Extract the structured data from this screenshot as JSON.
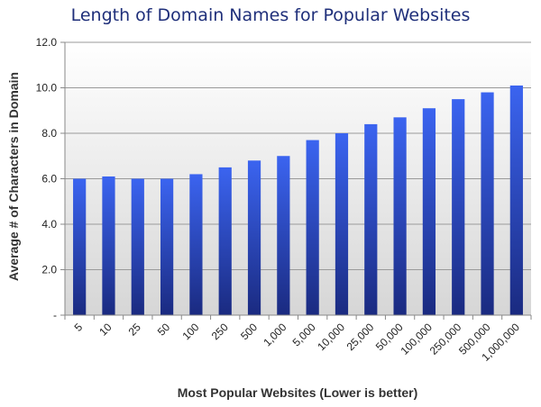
{
  "chart_data": {
    "type": "bar",
    "title": "Length of Domain Names for Popular Websites",
    "xlabel": "Most Popular Websites (Lower is better)",
    "ylabel": "Average # of Characters in Domain",
    "categories": [
      "5",
      "10",
      "25",
      "50",
      "100",
      "250",
      "500",
      "1,000",
      "5,000",
      "10,000",
      "25,000",
      "50,000",
      "100,000",
      "250,000",
      "500,000",
      "1,000,000"
    ],
    "values": [
      6.0,
      6.1,
      6.0,
      6.0,
      6.2,
      6.5,
      6.8,
      7.0,
      7.7,
      8.0,
      8.4,
      8.7,
      9.1,
      9.5,
      9.8,
      10.1
    ],
    "ylim": [
      0,
      12
    ],
    "yticks": [
      "-",
      "2.0",
      "4.0",
      "6.0",
      "8.0",
      "10.0",
      "12.0"
    ],
    "grid": true,
    "legend": "none",
    "colors": {
      "bar_top": "#3b64f0",
      "bar_bottom": "#1a2a80",
      "background_top": "#ffffff",
      "background_bottom": "#d6d6d6",
      "title": "#1f2f7a"
    }
  }
}
